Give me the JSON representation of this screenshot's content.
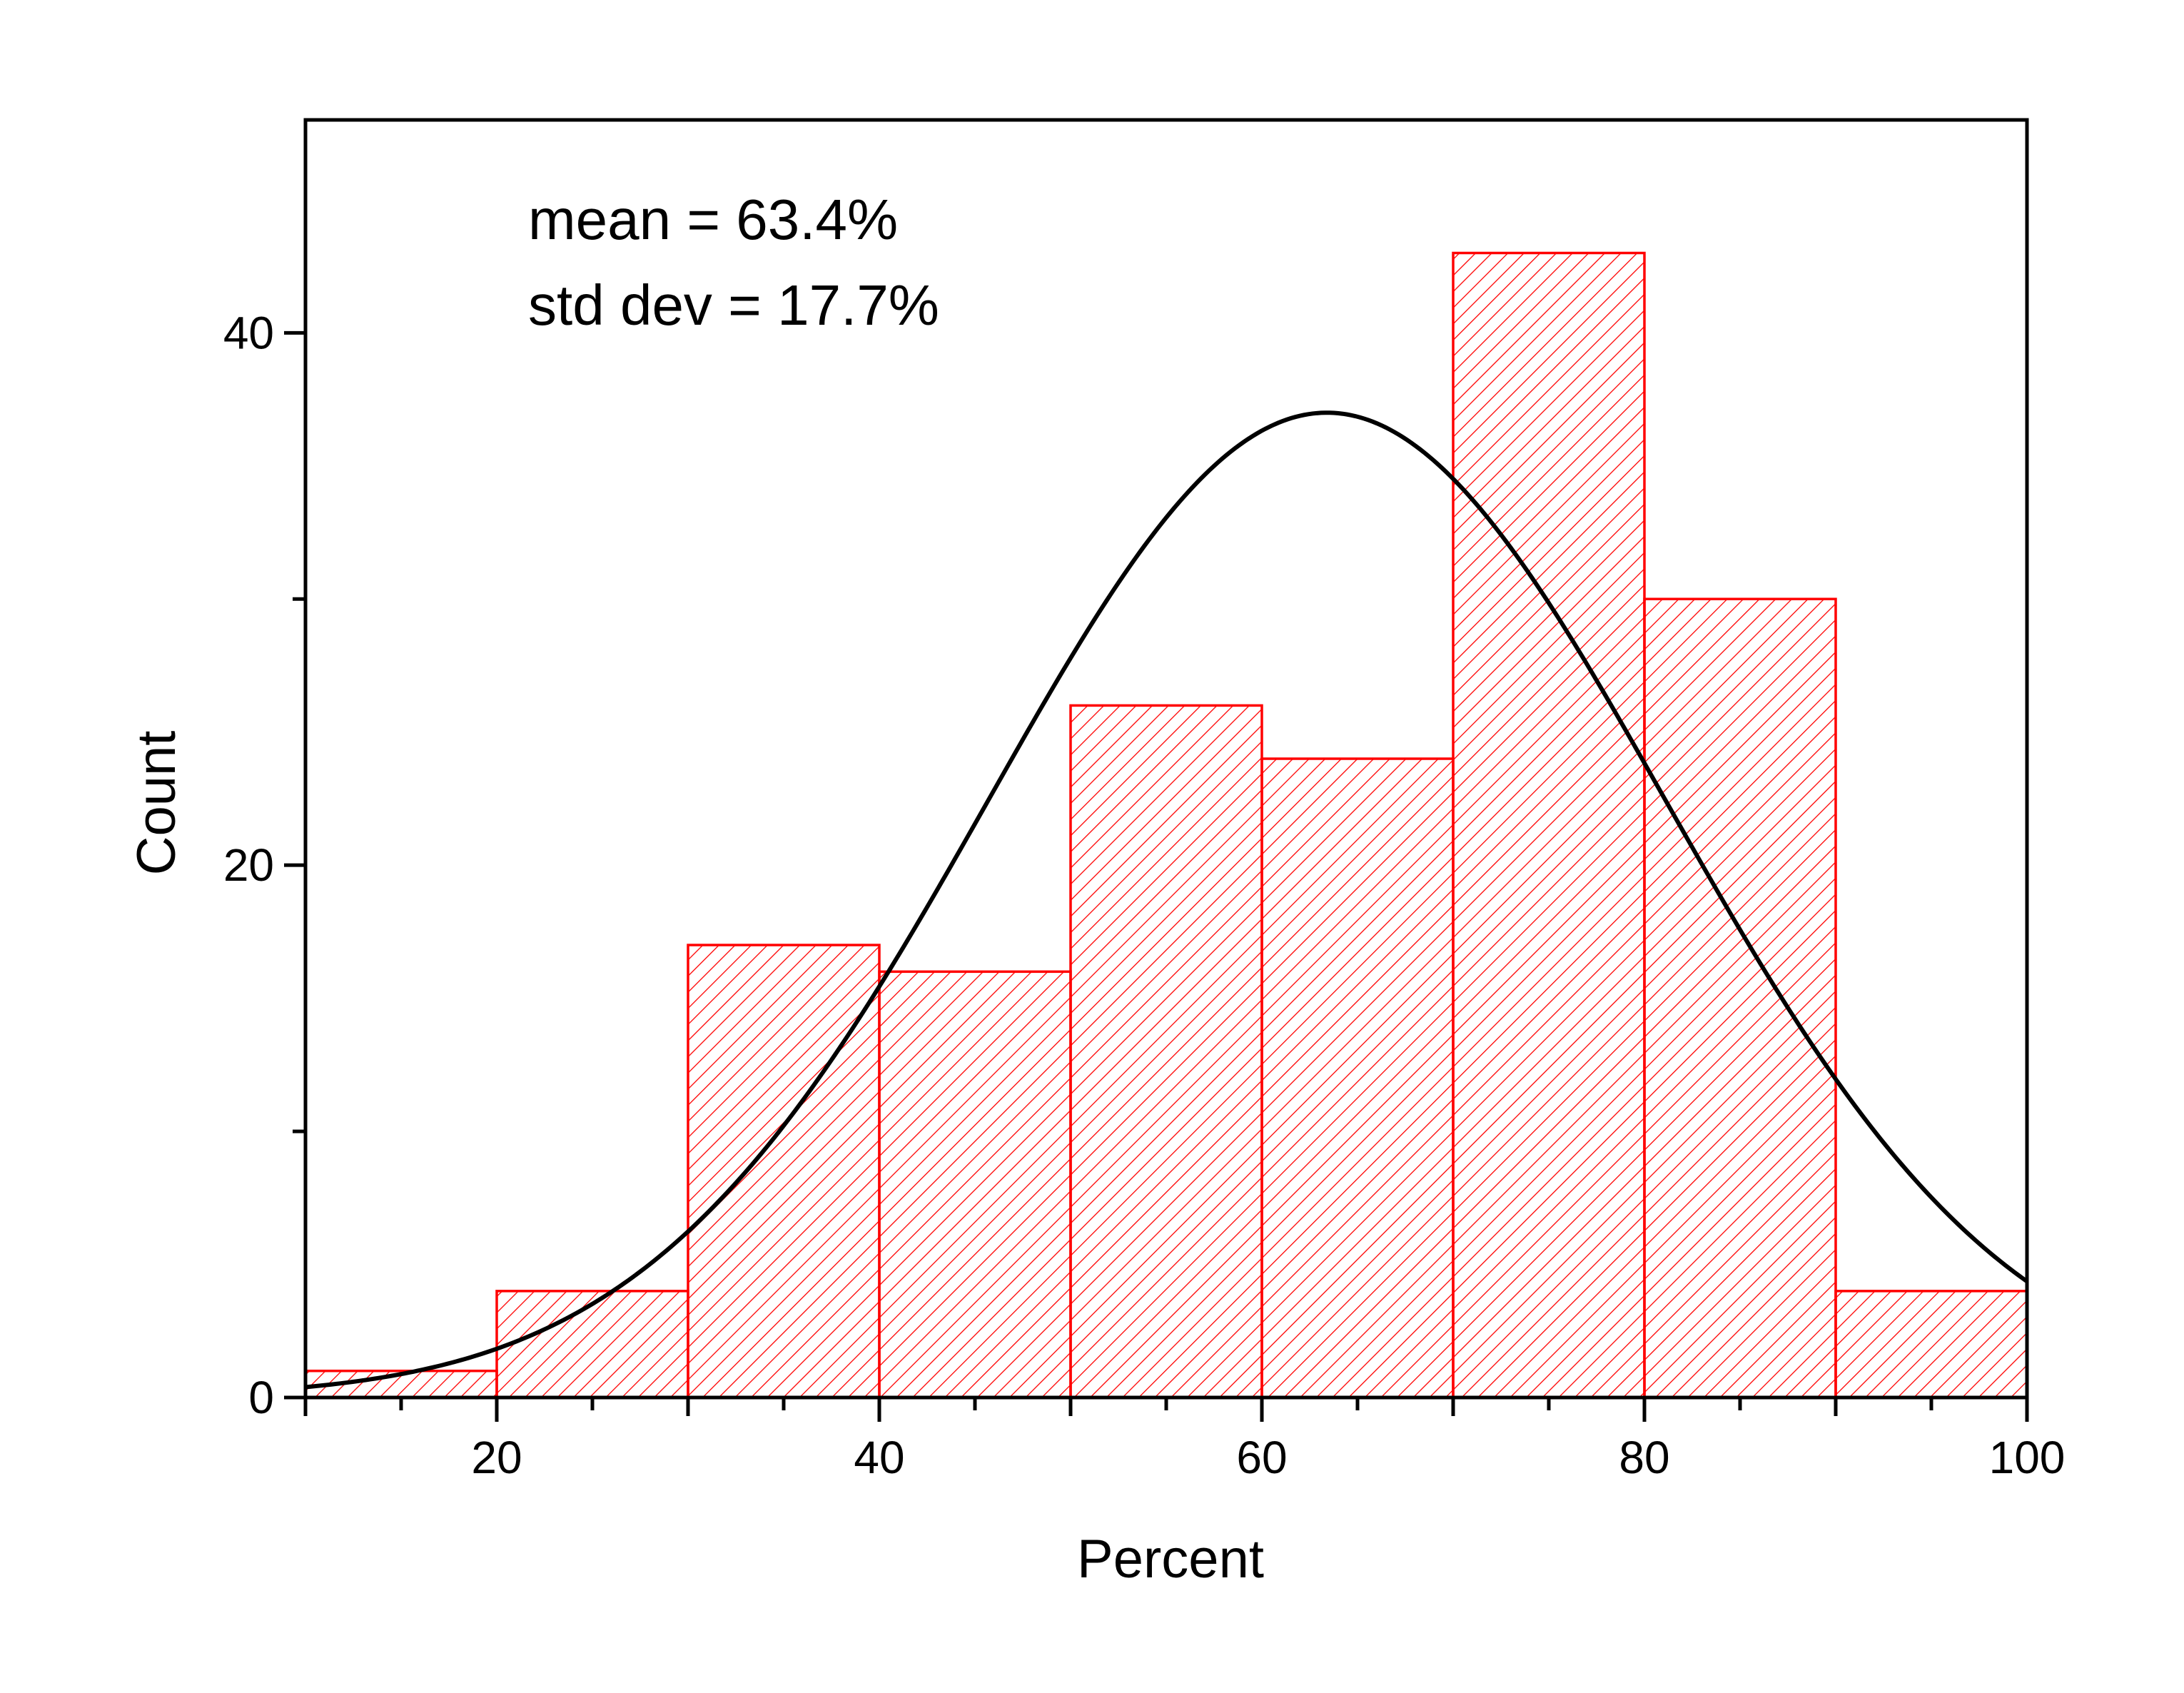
{
  "chart_data": {
    "type": "bar",
    "title": "",
    "xlabel": "Percent",
    "ylabel": "Count",
    "xlim": [
      10,
      100
    ],
    "ylim": [
      0,
      48
    ],
    "x_ticks": [
      20,
      40,
      60,
      80,
      100
    ],
    "y_ticks": [
      0,
      20,
      40
    ],
    "y_minor_ticks": [
      10,
      30
    ],
    "bins": [
      {
        "start": 10,
        "end": 20,
        "count": 1
      },
      {
        "start": 20,
        "end": 30,
        "count": 4
      },
      {
        "start": 30,
        "end": 40,
        "count": 17
      },
      {
        "start": 40,
        "end": 50,
        "count": 16
      },
      {
        "start": 50,
        "end": 60,
        "count": 26
      },
      {
        "start": 60,
        "end": 70,
        "count": 24
      },
      {
        "start": 70,
        "end": 80,
        "count": 43
      },
      {
        "start": 80,
        "end": 90,
        "count": 30
      },
      {
        "start": 90,
        "end": 100,
        "count": 4
      }
    ],
    "fit_curve": {
      "kind": "normal",
      "mean": 63.4,
      "std": 17.7,
      "peak_count": 37
    },
    "annotations": [
      "mean = 63.4%",
      "std dev = 17.7%"
    ],
    "colors": {
      "bars": "#ff0000",
      "curve": "#000000",
      "axes": "#000000"
    },
    "bar_fill": "diagonal-hatch",
    "grid": false
  }
}
